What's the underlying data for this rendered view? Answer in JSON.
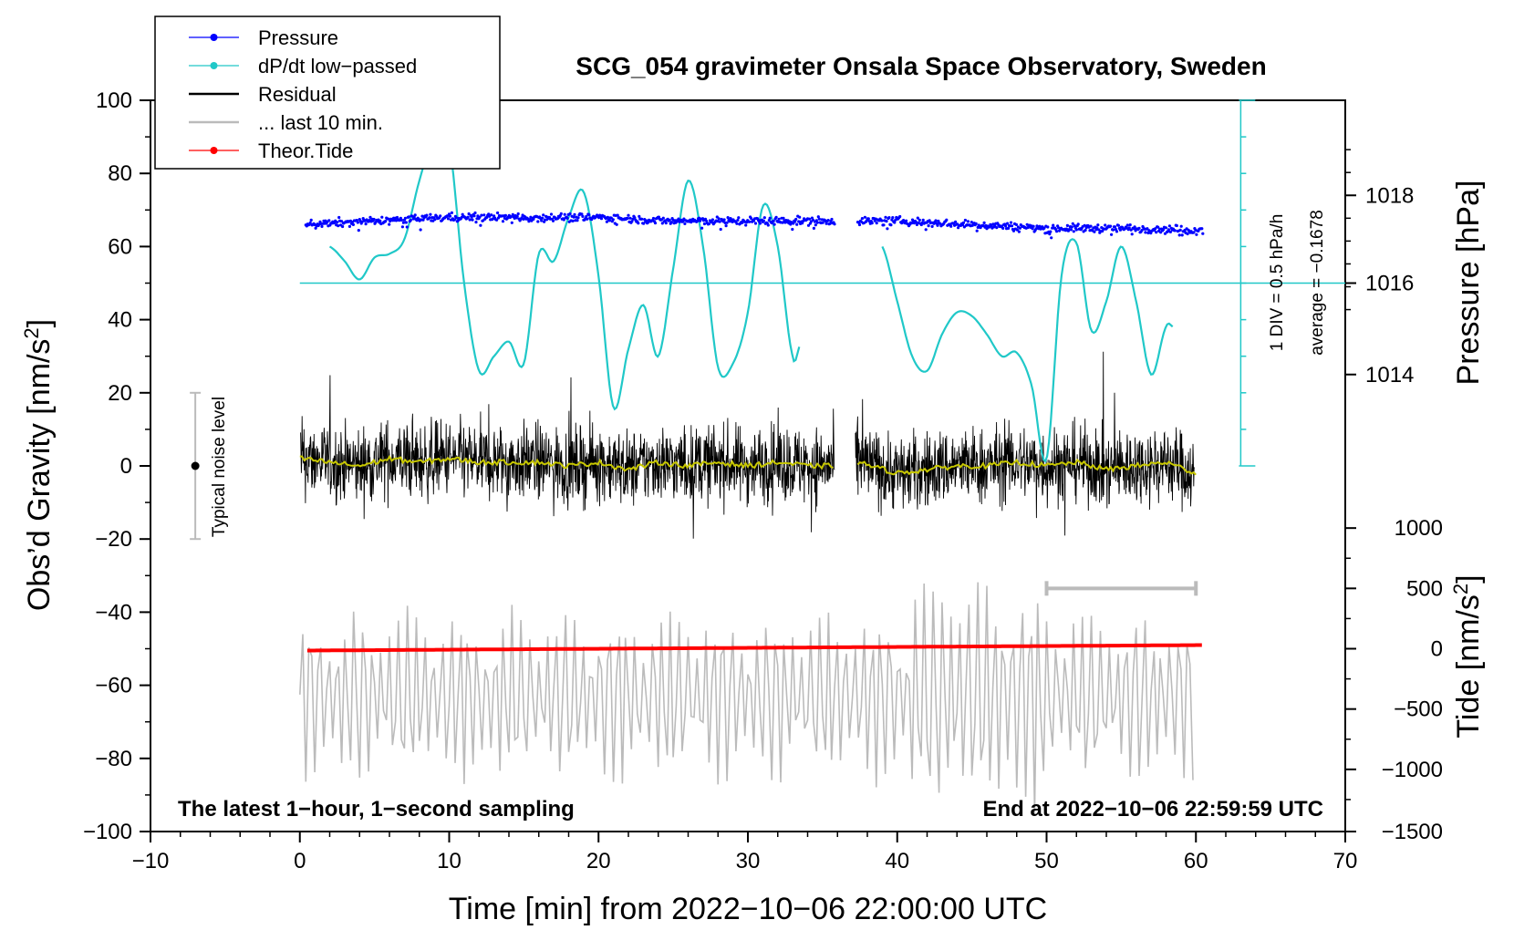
{
  "chart_data": {
    "type": "line",
    "title": "SCG_054 gravimeter Onsala Space Observatory, Sweden",
    "xlabel": "Time [min] from 2022−10−06 22:00:00 UTC",
    "ylabel_left": "Obs’d Gravity [nm/s",
    "ylabel_left_sup": "2",
    "ylabel_left_end": "]",
    "ylabel_pressure": "Pressure [hPa]",
    "ylabel_tide": "Tide [nm/s",
    "ylabel_tide_sup": "2",
    "ylabel_tide_end": "]",
    "xlim": [
      -10,
      70
    ],
    "ylim": [
      -100,
      100
    ],
    "x_ticks": [
      -10,
      0,
      10,
      20,
      30,
      40,
      50,
      60,
      70
    ],
    "x_tick_labels": [
      "−10",
      "0",
      "10",
      "20",
      "30",
      "40",
      "50",
      "60",
      "70"
    ],
    "y_ticks": [
      100,
      80,
      60,
      40,
      20,
      0,
      -20,
      -40,
      -60,
      -80,
      -100
    ],
    "y_tick_labels": [
      "100",
      "80",
      "60",
      "40",
      "20",
      "0",
      "−20",
      "−40",
      "−60",
      "−80",
      "−100"
    ],
    "pressure_axis": {
      "ticks": [
        1018,
        1016,
        1014
      ],
      "tick_labels": [
        "1018",
        "1016",
        "1014"
      ],
      "y_equiv": [
        74,
        50,
        25
      ]
    },
    "tide_axis": {
      "ticks": [
        1000,
        500,
        0,
        -500,
        -1000,
        -1500
      ],
      "tick_labels": [
        "1000",
        "500",
        "0",
        "−500",
        "−1000",
        "−1500"
      ],
      "y_equiv": [
        -17,
        -33.5,
        -50,
        -66.5,
        -83,
        -100
      ]
    },
    "dpdt_scale": {
      "label_div": "1 DIV = 0.5 hPa/h",
      "label_avg": "average = −0.1678",
      "baseline_y": 50,
      "bar_x": 63,
      "bar_range": [
        0,
        100
      ]
    },
    "legend": [
      {
        "label": "Pressure",
        "color": "#0000ff",
        "marker": true
      },
      {
        "label": "dP/dt low−passed",
        "color": "#20c8c8",
        "marker": true
      },
      {
        "label": "Residual",
        "color": "#000000",
        "marker": false
      },
      {
        "label": "... last 10 min.",
        "color": "#bbbbbb",
        "marker": false
      },
      {
        "label": "Theor.Tide",
        "color": "#ff0000",
        "marker": true
      }
    ],
    "annotations": {
      "bottom_left": "The latest 1−hour, 1−second sampling",
      "bottom_right": "End at 2022−10−06 22:59:59 UTC",
      "noise_label": "Typical noise level"
    },
    "noise_bar": {
      "x": -7,
      "y_range": [
        -20,
        20
      ]
    },
    "last10_bar": {
      "x_range": [
        50,
        60
      ],
      "y": -33.5
    },
    "gap": [
      35.8,
      37.3
    ],
    "series": [
      {
        "name": "Pressure",
        "color": "#0000ff",
        "x": [
          0,
          5,
          10,
          15,
          20,
          25,
          30,
          35.7,
          37.4,
          40,
          45,
          50,
          55,
          60.5
        ],
        "y": [
          66,
          67,
          68,
          68,
          68,
          67,
          67,
          67,
          67,
          67,
          66,
          65,
          65,
          64.5
        ]
      },
      {
        "name": "dP/dt low-passed",
        "color": "#20c8c8",
        "x": [
          2,
          3,
          4,
          5,
          6,
          7,
          8,
          9,
          10,
          11,
          12,
          13,
          14,
          15,
          16,
          17,
          18,
          19,
          20,
          21,
          22,
          23,
          24,
          25,
          26,
          27,
          28,
          29,
          30,
          31,
          32,
          33,
          33.5
        ],
        "y": [
          60,
          56,
          51,
          57,
          58,
          62,
          78,
          90,
          88,
          50,
          26,
          30,
          34,
          28,
          58,
          56,
          68,
          75,
          52,
          16,
          32,
          44,
          30,
          54,
          78,
          60,
          27,
          28,
          42,
          71,
          60,
          30,
          33
        ]
      },
      {
        "name": "dP/dt low-passed (after gap)",
        "color": "#20c8c8",
        "x": [
          39,
          40,
          41,
          42,
          43,
          44,
          45,
          46,
          47,
          48,
          49,
          50,
          51,
          52,
          53,
          54,
          55,
          56,
          57,
          58,
          58.5
        ],
        "y": [
          60,
          45,
          30,
          26,
          36,
          42,
          41,
          36,
          30,
          31,
          22,
          2,
          52,
          61,
          37,
          45,
          60,
          45,
          25,
          38,
          38
        ]
      },
      {
        "name": "Residual (smoothed)",
        "color": "#c8c800",
        "x": [
          0,
          2,
          4,
          6,
          8,
          10,
          12,
          14,
          16,
          18,
          20,
          22,
          24,
          26,
          28,
          30,
          32,
          34,
          35.7,
          37.4,
          40,
          42,
          44,
          46,
          48,
          50,
          52,
          54,
          56,
          58,
          60
        ],
        "y": [
          2,
          1,
          0,
          2,
          1,
          2,
          1,
          1,
          1,
          0,
          1,
          -1,
          1,
          0,
          1,
          0,
          1,
          0,
          0,
          1,
          -2,
          -1,
          0,
          0,
          1,
          0,
          1,
          -1,
          0,
          1,
          -2
        ]
      },
      {
        "name": "Theor.Tide",
        "color": "#ff0000",
        "x": [
          0.5,
          60.5
        ],
        "y": [
          -50.5,
          -49
        ]
      }
    ]
  }
}
